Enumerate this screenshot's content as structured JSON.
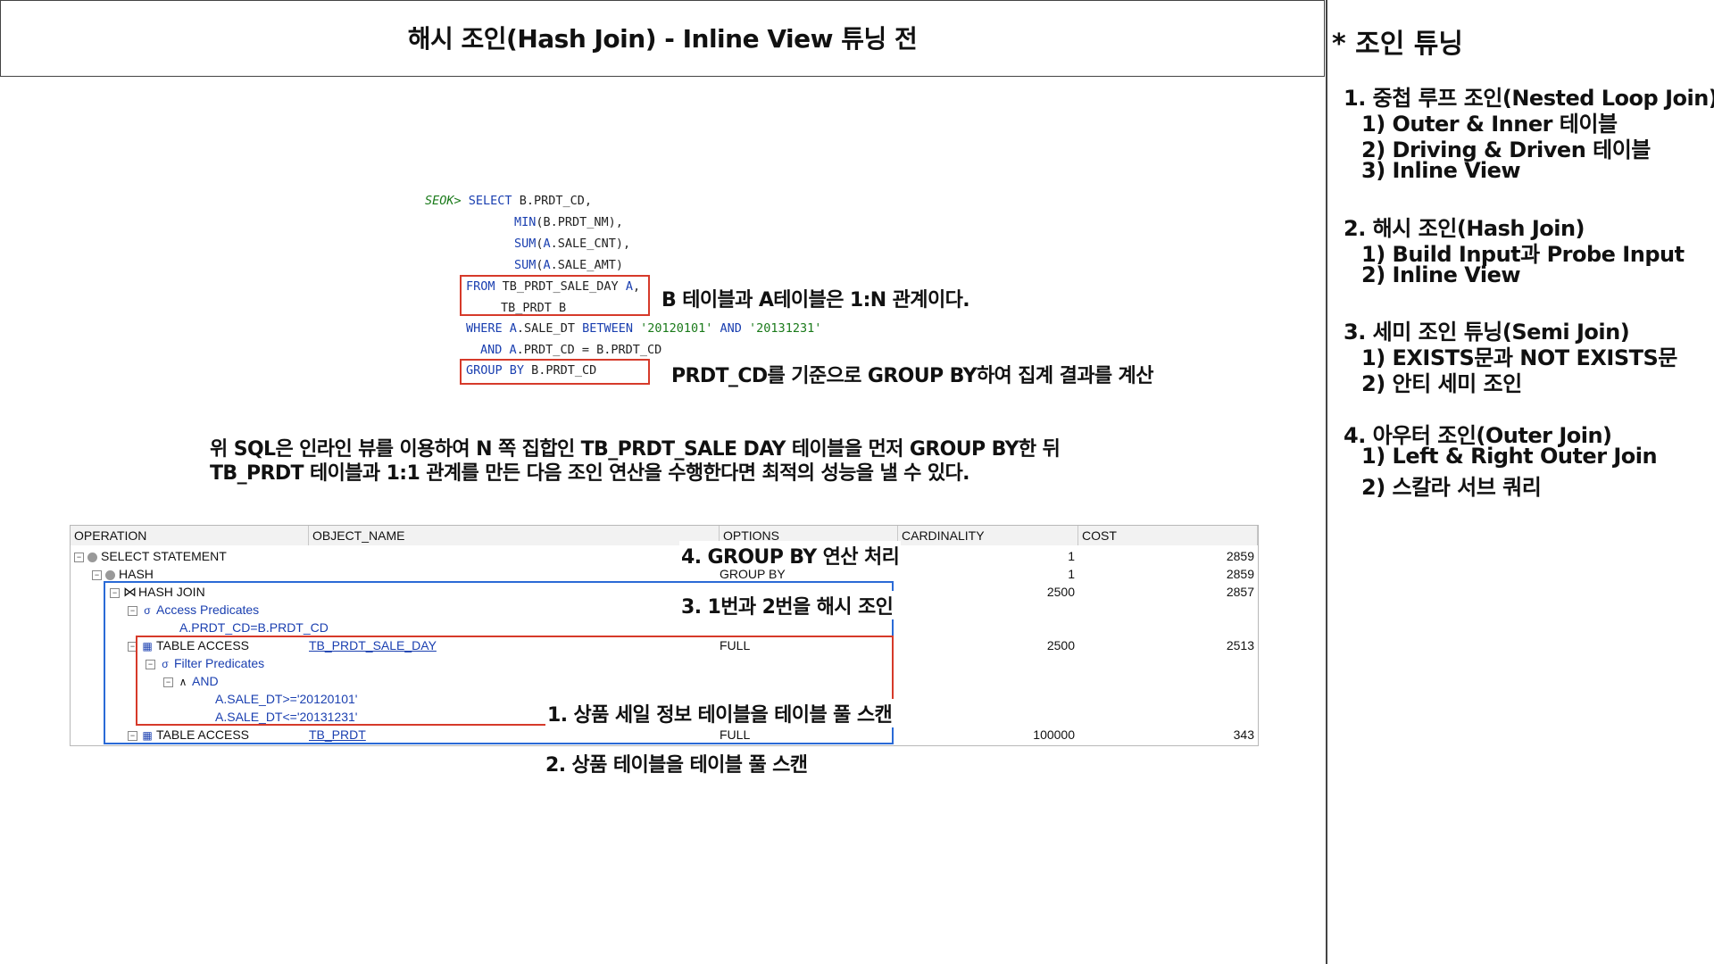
{
  "header": {
    "title": "해시 조인(Hash Join) - Inline View 튜닝 전"
  },
  "sidebar": {
    "title": "* 조인 튜닝",
    "sections": [
      {
        "heading": "1.  중첩 루프 조인(Nested Loop Join)",
        "items": [
          "1) Outer & Inner 테이블",
          "2) Driving & Driven 테이블",
          "3) Inline View"
        ]
      },
      {
        "heading": "2. 해시 조인(Hash Join)",
        "items": [
          "1) Build Input과 Probe Input",
          "2) Inline View"
        ]
      },
      {
        "heading": "3. 세미 조인 튜닝(Semi Join)",
        "items": [
          "1) EXISTS문과 NOT EXISTS문",
          "2) 안티 세미 조인"
        ]
      },
      {
        "heading": "4. 아우터 조인(Outer Join)",
        "items": [
          "1) Left & Right Outer Join",
          "2) 스칼라 서브 쿼리"
        ]
      }
    ]
  },
  "sql": {
    "prompt": "SEOK>",
    "line1_kw": "SELECT",
    "line1_rest": " B.PRDT_CD,",
    "line2_fn": "MIN",
    "line2_rest": "(B.PRDT_NM),",
    "line3_fn": "SUM",
    "line3_a": "(",
    "line3_alias": "A",
    "line3_rest": ".SALE_CNT),",
    "line4_fn": "SUM",
    "line4_a": "(",
    "line4_alias": "A",
    "line4_rest": ".SALE_AMT)",
    "line5_kw": "FROM",
    "line5_rest": " TB_PRDT_SALE_DAY ",
    "line5_alias": "A",
    "line5_end": ",",
    "line6": "TB_PRDT B",
    "line7_kw": "WHERE",
    "line7_a": " ",
    "line7_alias": "A",
    "line7_mid": ".SALE_DT ",
    "line7_kw2": "BETWEEN",
    "line7_s1": " '20120101' ",
    "line7_kw3": "AND",
    "line7_s2": " '20131231'",
    "line8_kw": "AND",
    "line8_a": " ",
    "line8_alias": "A",
    "line8_rest": ".PRDT_CD = B.PRDT_CD",
    "line9_kw": "GROUP BY",
    "line9_rest": " B.PRDT_CD"
  },
  "annotations": {
    "relation": "B 테이블과 A테이블은 1:N 관계이다.",
    "groupby": "PRDT_CD를 기준으로 GROUP BY하여 집계 결과를 계산",
    "explain_line1": "위 SQL은 인라인 뷰를 이용하여 N 쪽 집합인 TB_PRDT_SALE DAY 테이블을 먼저 GROUP BY한 뒤",
    "explain_line2": "TB_PRDT 테이블과 1:1 관계를 만든 다음 조인 연산을 수행한다면 최적의 성능을 낼 수 있다.",
    "step4": "4. GROUP BY 연산 처리",
    "step3": "3. 1번과 2번을 해시 조인",
    "step1": "1. 상품 세일 정보 테이블을 테이블 풀 스캔",
    "step2": "2. 상품 테이블을 테이블 풀 스캔"
  },
  "plan": {
    "columns": [
      "OPERATION",
      "OBJECT_NAME",
      "OPTIONS",
      "CARDINALITY",
      "COST"
    ],
    "rows": [
      {
        "op": "SELECT STATEMENT",
        "object": "",
        "options": "",
        "card": "1",
        "cost": "2859"
      },
      {
        "op": "HASH",
        "object": "",
        "options": "GROUP BY",
        "card": "1",
        "cost": "2859"
      },
      {
        "op": "HASH JOIN",
        "object": "",
        "options": "",
        "card": "2500",
        "cost": "2857"
      },
      {
        "op": "Access Predicates",
        "object": "",
        "options": "",
        "card": "",
        "cost": ""
      },
      {
        "op": "A.PRDT_CD=B.PRDT_CD",
        "object": "",
        "options": "",
        "card": "",
        "cost": ""
      },
      {
        "op": "TABLE ACCESS",
        "object": "TB_PRDT_SALE_DAY",
        "options": "FULL",
        "card": "2500",
        "cost": "2513"
      },
      {
        "op": "Filter Predicates",
        "object": "",
        "options": "",
        "card": "",
        "cost": ""
      },
      {
        "op": "AND",
        "object": "",
        "options": "",
        "card": "",
        "cost": ""
      },
      {
        "op": "A.SALE_DT>='20120101'",
        "object": "",
        "options": "",
        "card": "",
        "cost": ""
      },
      {
        "op": "A.SALE_DT<='20131231'",
        "object": "",
        "options": "",
        "card": "",
        "cost": ""
      },
      {
        "op": "TABLE ACCESS",
        "object": "TB_PRDT",
        "options": "FULL",
        "card": "100000",
        "cost": "343"
      }
    ]
  }
}
